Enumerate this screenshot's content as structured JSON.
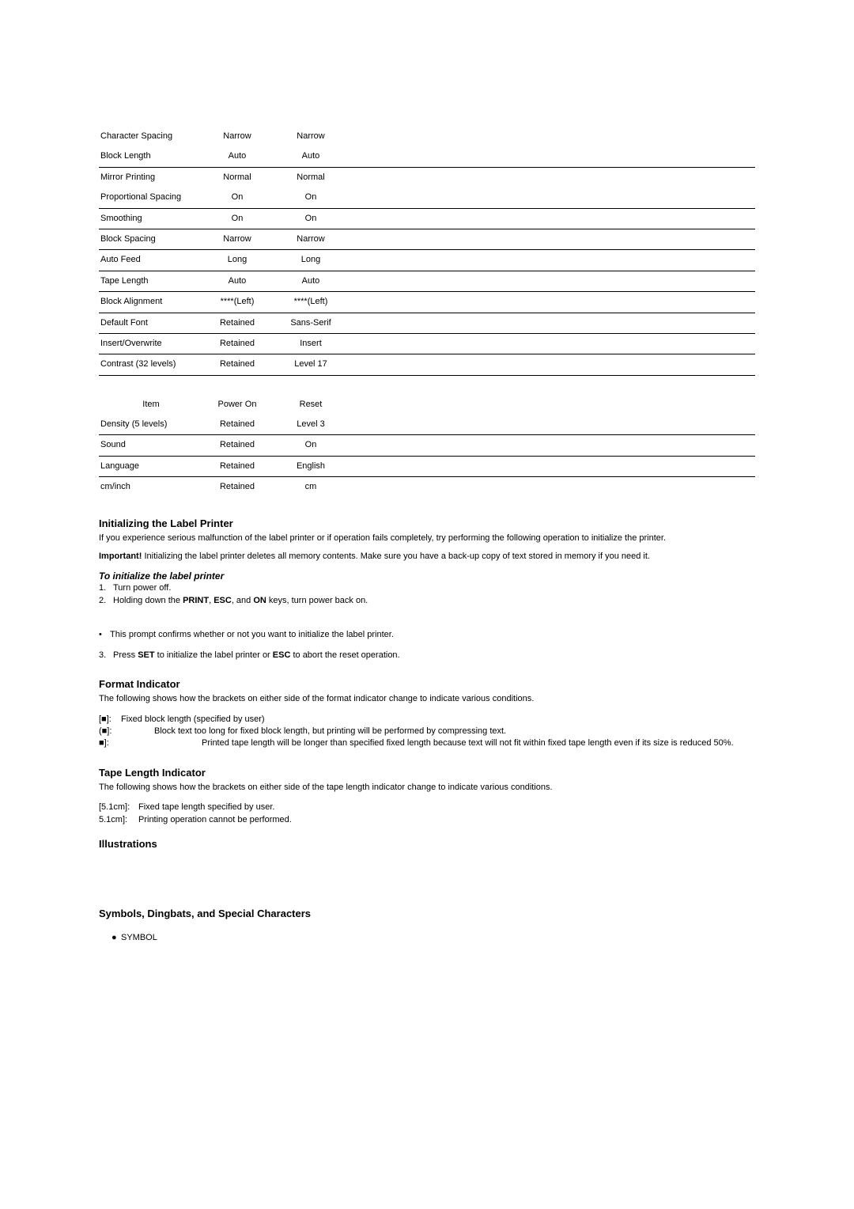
{
  "table1": {
    "rows": [
      {
        "item": "Character Spacing",
        "poweron": "Narrow",
        "reset": "Narrow",
        "underline": false
      },
      {
        "item": "Block Length",
        "poweron": "Auto",
        "reset": "Auto",
        "underline": true
      },
      {
        "item": "Mirror Printing",
        "poweron": "Normal",
        "reset": "Normal",
        "underline": false
      },
      {
        "item": "Proportional Spacing",
        "poweron": "On",
        "reset": "On",
        "underline": true
      },
      {
        "item": "Smoothing",
        "poweron": "On",
        "reset": "On",
        "underline": true
      },
      {
        "item": "Block Spacing",
        "poweron": "Narrow",
        "reset": "Narrow",
        "underline": true
      },
      {
        "item": "Auto Feed",
        "poweron": "Long",
        "reset": "Long",
        "underline": true
      },
      {
        "item": "Tape Length",
        "poweron": "Auto",
        "reset": "Auto",
        "underline": true
      },
      {
        "item": "Block Alignment",
        "poweron": "****(Left)",
        "reset": "****(Left)",
        "underline": true
      },
      {
        "item": "Default Font",
        "poweron": "Retained",
        "reset": "Sans-Serif",
        "underline": true
      },
      {
        "item": "Insert/Overwrite",
        "poweron": "Retained",
        "reset": "Insert",
        "underline": true
      },
      {
        "item": "Contrast (32 levels)",
        "poweron": "Retained",
        "reset": "Level 17",
        "underline": true
      }
    ]
  },
  "table2": {
    "header": {
      "item": "Item",
      "poweron": "Power On",
      "reset": "Reset"
    },
    "rows": [
      {
        "item": "Density (5 levels)",
        "poweron": "Retained",
        "reset": "Level 3",
        "underline": true
      },
      {
        "item": "Sound",
        "poweron": "Retained",
        "reset": "On",
        "underline": true
      },
      {
        "item": "Language",
        "poweron": "Retained",
        "reset": "English",
        "underline": true
      },
      {
        "item": "cm/inch",
        "poweron": "Retained",
        "reset": "cm",
        "underline": false
      }
    ]
  },
  "init": {
    "heading": "Initializing the Label Printer",
    "p1": "If you experience serious malfunction of the label printer or if operation fails completely, try performing the following operation to initialize the printer.",
    "important_label": "Important!",
    "important_text": " Initializing the label printer deletes all memory contents. Make sure you have a back-up copy of text stored in memory if you need it.",
    "sub": "To initialize the label printer",
    "step1_num": "1.",
    "step1": "Turn power off.",
    "step2_num": "2.",
    "step2_a": "Holding down the ",
    "step2_b": "PRINT",
    "step2_c": ", ",
    "step2_d": "ESC",
    "step2_e": ", and ",
    "step2_f": "ON",
    "step2_g": " keys, turn power back on.",
    "bullet": "•",
    "bullet_text": "This prompt confirms whether or not you want to initialize the label printer.",
    "step3_num": "3.",
    "step3_a": "Press ",
    "step3_b": "SET",
    "step3_c": " to initialize the label printer or ",
    "step3_d": "ESC",
    "step3_e": " to abort the reset operation."
  },
  "format": {
    "heading": "Format Indicator",
    "p": "The following shows how the brackets on either side of the format indicator change to indicate various conditions.",
    "rows": [
      {
        "sym": "[■]:",
        "cls": "sym-w1",
        "text": "Fixed block length (specified by user)"
      },
      {
        "sym": "(■]:",
        "cls": "sym-w2",
        "text": "Block text too long for fixed block length, but printing will be performed by compressing text."
      },
      {
        "sym": "  ■]:",
        "cls": "sym-w3",
        "text": "Printed tape length will be longer than specified fixed length because text will not fit within fixed tape length even if its size is reduced 50%."
      }
    ]
  },
  "tape": {
    "heading": "Tape Length Indicator",
    "p": "The following shows how the brackets on either side of the tape length indicator change to indicate various conditions.",
    "rows": [
      {
        "label": "[5.1cm]:",
        "text": "Fixed tape length specified by user."
      },
      {
        "label": " 5.1cm]:",
        "text": "Printing operation cannot be performed."
      }
    ]
  },
  "illus": {
    "heading": "Illustrations"
  },
  "symbols": {
    "heading": "Symbols, Dingbats, and Special Characters",
    "dot": "●",
    "label": "SYMBOL"
  }
}
